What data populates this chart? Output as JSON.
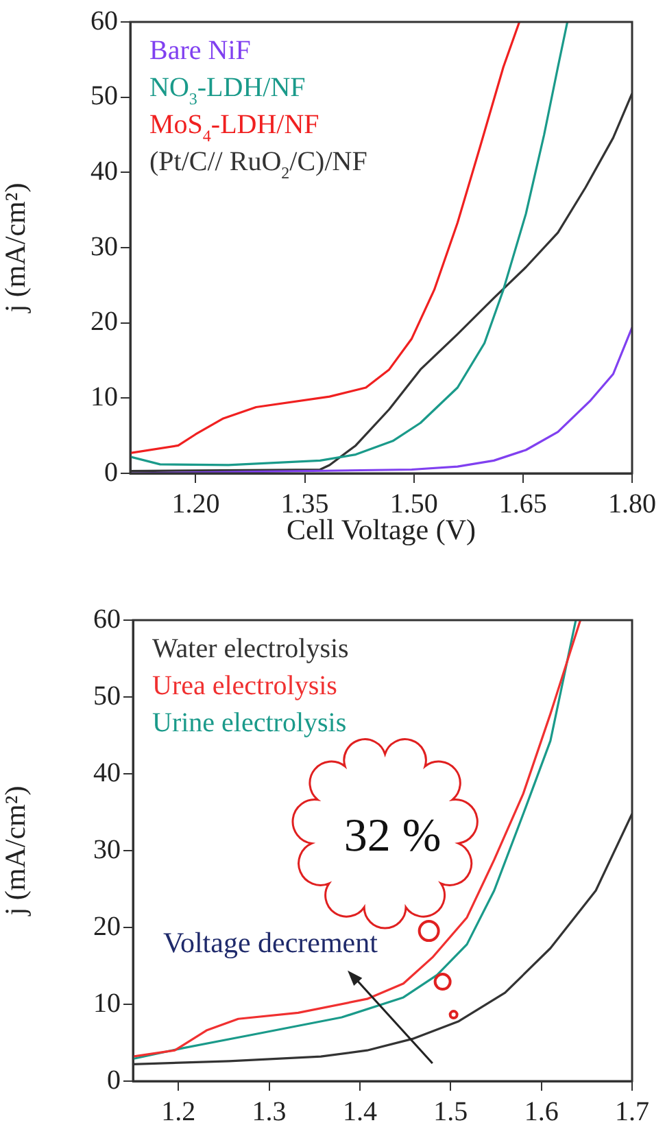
{
  "chart_data": [
    {
      "type": "line",
      "xlabel": "Cell Voltage (V)",
      "ylabel": "j (mA/cm²)",
      "xlim": [
        1.11,
        1.8
      ],
      "ylim": [
        0,
        60
      ],
      "xticks": [
        {
          "value": 1.2,
          "label": "1.20"
        },
        {
          "value": 1.35,
          "label": "1.35"
        },
        {
          "value": 1.5,
          "label": "1.50"
        },
        {
          "value": 1.65,
          "label": "1.65"
        },
        {
          "value": 1.8,
          "label": "1.80"
        }
      ],
      "yticks": [
        0,
        10,
        20,
        30,
        40,
        50,
        60
      ],
      "grid": false,
      "legend": "top left",
      "marker": "none",
      "line_style": "solid",
      "series": [
        {
          "name": "Bare NiF",
          "color": "#8040f0",
          "x": [
            1.11,
            1.497,
            1.56,
            1.61,
            1.654,
            1.698,
            1.742,
            1.774,
            1.8
          ],
          "values": [
            0,
            0.5,
            0.9,
            1.7,
            3.1,
            5.5,
            9.6,
            13.2,
            19.4
          ]
        },
        {
          "name": "NO$_{3}$-LDH/NF",
          "color": "#1a9a8a",
          "x": [
            1.11,
            1.151,
            1.245,
            1.371,
            1.42,
            1.471,
            1.509,
            1.56,
            1.597,
            1.623,
            1.654,
            1.679,
            1.698,
            1.711
          ],
          "values": [
            2.2,
            1.2,
            1.1,
            1.7,
            2.5,
            4.3,
            6.7,
            11.4,
            17.3,
            24.4,
            34.5,
            45,
            54,
            60
          ]
        },
        {
          "name": "MoS$_{4}$-LDH/NF",
          "color": "#f02020",
          "x": [
            1.11,
            1.176,
            1.2,
            1.238,
            1.283,
            1.384,
            1.434,
            1.466,
            1.497,
            1.528,
            1.56,
            1.591,
            1.623,
            1.645
          ],
          "values": [
            2.7,
            3.7,
            5.2,
            7.3,
            8.8,
            10.2,
            11.4,
            13.8,
            17.9,
            24.4,
            33.3,
            43.4,
            54,
            60
          ]
        },
        {
          "name": "(Pt/C// RuO$_{2}$/C)/NF",
          "color": "#333333",
          "x": [
            1.11,
            1.371,
            1.384,
            1.42,
            1.466,
            1.509,
            1.56,
            1.61,
            1.654,
            1.698,
            1.736,
            1.774,
            1.8
          ],
          "values": [
            0.3,
            0.5,
            1.1,
            3.7,
            8.5,
            13.8,
            18.5,
            23.3,
            27.4,
            32,
            38,
            44.6,
            50.5
          ]
        }
      ]
    },
    {
      "type": "line",
      "ylabel": "j (mA/cm²)",
      "xlim": [
        1.15,
        1.7
      ],
      "ylim": [
        0,
        60
      ],
      "xticks": [
        1.2,
        1.3,
        1.4,
        1.5,
        1.6,
        1.7
      ],
      "yticks": [
        0,
        10,
        20,
        30,
        40,
        50,
        60
      ],
      "grid": false,
      "legend": "top left",
      "marker": "none",
      "line_style": "solid",
      "annotations": [
        "32 %",
        "Voltage decrement"
      ],
      "series": [
        {
          "name": "Water electrolysis",
          "color": "#333333",
          "x": [
            1.15,
            1.256,
            1.357,
            1.408,
            1.458,
            1.509,
            1.56,
            1.61,
            1.66,
            1.7
          ],
          "values": [
            2.2,
            2.6,
            3.2,
            4,
            5.5,
            7.8,
            11.5,
            17.3,
            24.8,
            34.8
          ]
        },
        {
          "name": "Urea electrolysis",
          "color": "#f03030",
          "x": [
            1.15,
            1.196,
            1.231,
            1.266,
            1.332,
            1.408,
            1.448,
            1.48,
            1.518,
            1.548,
            1.58,
            1.61,
            1.643
          ],
          "values": [
            3.2,
            4,
            6.6,
            8.1,
            8.9,
            10.7,
            12.7,
            16.1,
            21.3,
            28.8,
            37.4,
            47.8,
            60
          ]
        },
        {
          "name": "Urine electrolysis",
          "color": "#1a9a8a",
          "x": [
            1.15,
            1.205,
            1.28,
            1.38,
            1.448,
            1.485,
            1.518,
            1.548,
            1.583,
            1.61,
            1.638
          ],
          "values": [
            2.9,
            4.3,
            6,
            8.3,
            10.9,
            13.8,
            17.8,
            24.8,
            35.7,
            44.3,
            60
          ]
        }
      ]
    }
  ]
}
